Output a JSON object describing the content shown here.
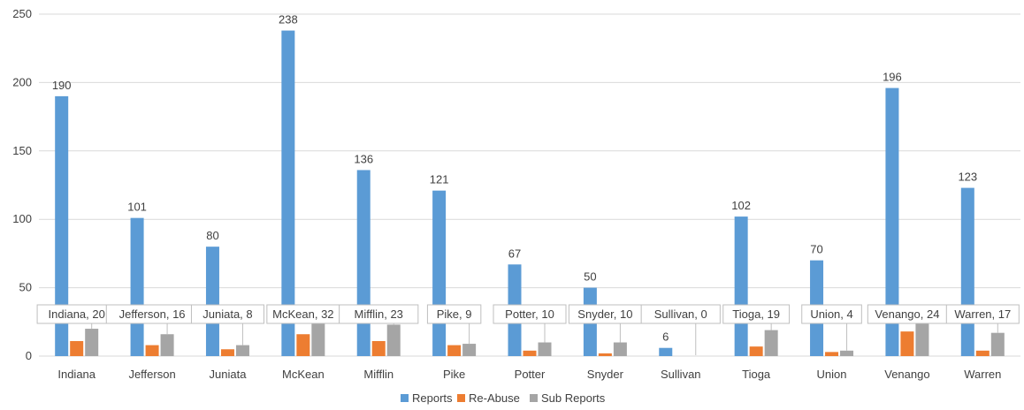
{
  "chart_data": {
    "type": "bar",
    "categories": [
      "Indiana",
      "Jefferson",
      "Juniata",
      "McKean",
      "Mifflin",
      "Pike",
      "Potter",
      "Snyder",
      "Sullivan",
      "Tioga",
      "Union",
      "Venango",
      "Warren"
    ],
    "series": [
      {
        "name": "Reports",
        "color": "#5b9bd5",
        "values": [
          190,
          101,
          80,
          238,
          136,
          121,
          67,
          50,
          6,
          102,
          70,
          196,
          123
        ],
        "data_labels": [
          "190",
          "101",
          "80",
          "238",
          "136",
          "121",
          "67",
          "50",
          "6",
          "102",
          "70",
          "196",
          "123"
        ]
      },
      {
        "name": "Re-Abuse",
        "color": "#ed7d31",
        "values": [
          11,
          8,
          5,
          16,
          11,
          8,
          4,
          2,
          0,
          7,
          3,
          18,
          4
        ]
      },
      {
        "name": "Sub Reports",
        "color": "#a5a5a5",
        "values": [
          20,
          16,
          8,
          32,
          23,
          9,
          10,
          10,
          0,
          19,
          4,
          24,
          17
        ],
        "data_labels": [
          "Indiana, 20",
          "Jefferson, 16",
          "Juniata, 8",
          "McKean, 32",
          "Mifflin, 23",
          "Pike, 9",
          "Potter, 10",
          "Snyder, 10",
          "Sullivan, 0",
          "Tioga, 19",
          "Union, 4",
          "Venango, 24",
          "Warren, 17"
        ]
      }
    ],
    "yticks": [
      "0",
      "50",
      "100",
      "150",
      "200",
      "250"
    ],
    "ylim": [
      0,
      250
    ],
    "grid": true,
    "gridline_color": "#d9d9d9",
    "legend_position": "bottom"
  }
}
